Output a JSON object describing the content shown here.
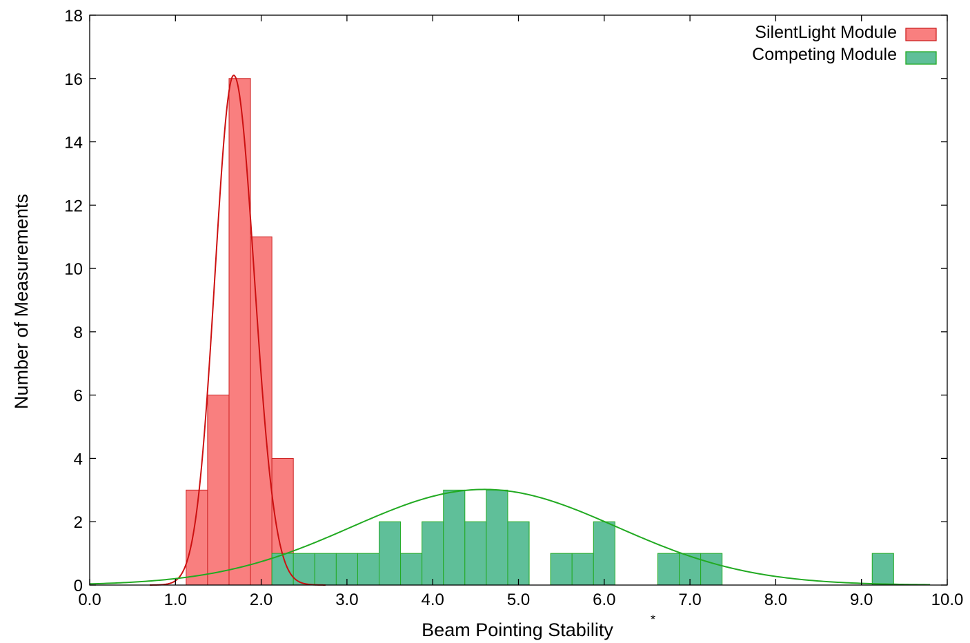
{
  "chart_data": {
    "type": "bar",
    "subtype": "histogram with fitted curves",
    "xlabel": "Beam Pointing Stability",
    "xlabel_suffix": "*",
    "ylabel": "Number of Measurements",
    "xlim": [
      0,
      10
    ],
    "ylim": [
      0,
      18
    ],
    "x_ticks": [
      "0.0",
      "1.0",
      "2.0",
      "3.0",
      "4.0",
      "5.0",
      "6.0",
      "7.0",
      "8.0",
      "9.0",
      "10.0"
    ],
    "y_ticks": [
      "0",
      "2",
      "4",
      "6",
      "8",
      "10",
      "12",
      "14",
      "16",
      "18"
    ],
    "grid": false,
    "legend_position": "top-right",
    "bin_width": 0.25,
    "series": [
      {
        "name": "SilentLight Module",
        "color": "#f97f7f",
        "edge_color": "#cc2222",
        "curve_color": "#cc1111",
        "bins": [
          {
            "x0": 1.125,
            "y": 3
          },
          {
            "x0": 1.375,
            "y": 6
          },
          {
            "x0": 1.625,
            "y": 16
          },
          {
            "x0": 1.875,
            "y": 11
          },
          {
            "x0": 2.125,
            "y": 4
          }
        ],
        "fit": {
          "mean": 1.68,
          "sigma_left": 0.22,
          "sigma_right": 0.24,
          "peak": 16.1,
          "x_range": [
            0.7,
            2.75
          ]
        }
      },
      {
        "name": "Competing Module",
        "color": "#5fbf99",
        "edge_color": "#22aa22",
        "curve_color": "#22aa22",
        "bins": [
          {
            "x0": 2.125,
            "y": 1
          },
          {
            "x0": 2.375,
            "y": 1
          },
          {
            "x0": 2.625,
            "y": 1
          },
          {
            "x0": 2.875,
            "y": 1
          },
          {
            "x0": 3.125,
            "y": 1
          },
          {
            "x0": 3.375,
            "y": 2
          },
          {
            "x0": 3.625,
            "y": 1
          },
          {
            "x0": 3.875,
            "y": 2
          },
          {
            "x0": 4.125,
            "y": 3
          },
          {
            "x0": 4.375,
            "y": 2
          },
          {
            "x0": 4.625,
            "y": 3
          },
          {
            "x0": 4.875,
            "y": 2
          },
          {
            "x0": 5.375,
            "y": 1
          },
          {
            "x0": 5.625,
            "y": 1
          },
          {
            "x0": 5.875,
            "y": 2
          },
          {
            "x0": 6.625,
            "y": 1
          },
          {
            "x0": 6.875,
            "y": 1
          },
          {
            "x0": 7.125,
            "y": 1
          },
          {
            "x0": 9.125,
            "y": 1
          }
        ],
        "fit": {
          "mean": 4.6,
          "sigma": 1.55,
          "peak": 3.02,
          "x_range": [
            0.0,
            9.8
          ]
        }
      }
    ]
  }
}
